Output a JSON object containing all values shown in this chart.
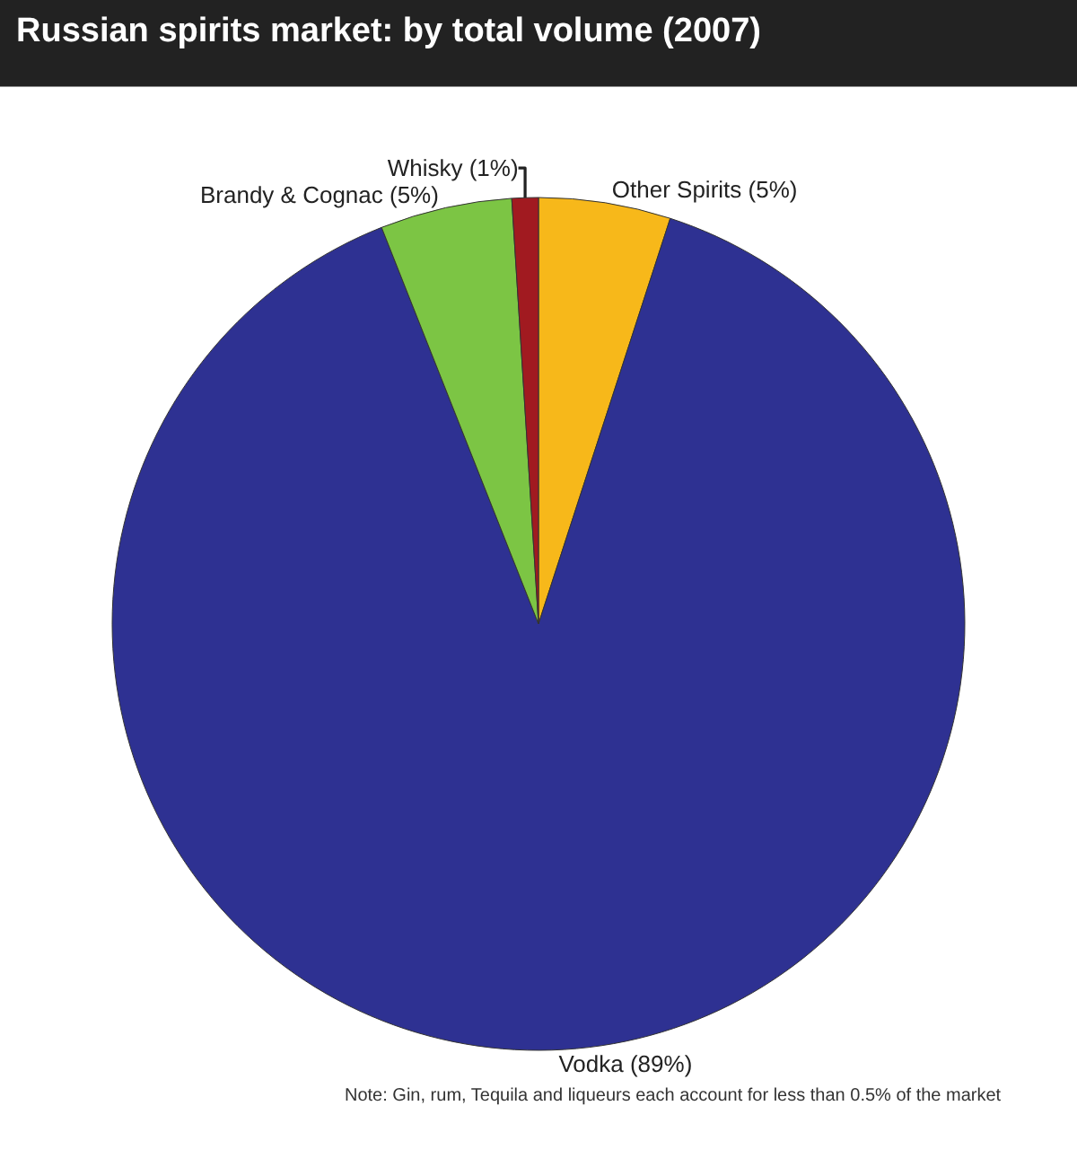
{
  "chart_data": {
    "type": "pie",
    "title": "Russian spirits market: by total volume (2007)",
    "categories": [
      "Other Spirits (5%)",
      "Vodka (89%)",
      "Brandy & Cognac (5%)",
      "Whisky (1%)"
    ],
    "values": [
      5,
      89,
      5,
      1
    ],
    "colors": [
      "#f7b81a",
      "#2e3192",
      "#7cc544",
      "#a11a20"
    ],
    "legend": false,
    "annotations": [
      "Note: Gin, rum, Tequila and liqueurs each account for less than 0.5% of the market"
    ]
  }
}
